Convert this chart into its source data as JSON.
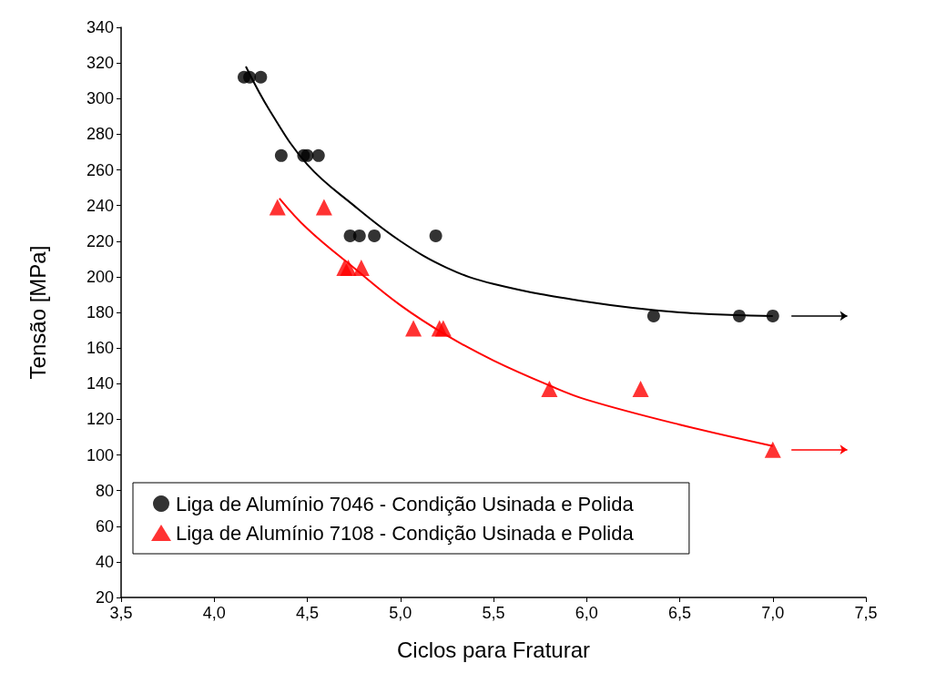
{
  "chart_data": {
    "type": "scatter",
    "xlabel": "Ciclos para Fraturar",
    "ylabel": "Tensão [MPa]",
    "xlim": [
      3.5,
      7.5
    ],
    "xticks": [
      {
        "value": 3.5,
        "label": "3,5"
      },
      {
        "value": 4,
        "label": "4,0"
      },
      {
        "value": 4.5,
        "label": "4,5"
      },
      {
        "value": 5,
        "label": "5,0"
      },
      {
        "value": 5.5,
        "label": "5,5"
      },
      {
        "value": 6,
        "label": "6,0"
      },
      {
        "value": 6.5,
        "label": "6,5"
      },
      {
        "value": 7,
        "label": "7,0"
      },
      {
        "value": 7.5,
        "label": "7,5"
      }
    ],
    "ylim": [
      20,
      340
    ],
    "yticks": [
      20,
      40,
      60,
      80,
      100,
      120,
      140,
      160,
      180,
      200,
      220,
      240,
      260,
      280,
      300,
      320,
      340
    ],
    "legend": "bottom left",
    "grid": false,
    "series": [
      {
        "name": "Liga de Alumínio 7046 - Condição Usinada e Polida",
        "color": "#000000",
        "marker": "circle",
        "x": [
          4.16,
          4.19,
          4.25,
          4.36,
          4.48,
          4.5,
          4.56,
          4.73,
          4.78,
          4.86,
          5.19,
          6.36,
          6.82,
          7.0
        ],
        "values": [
          312,
          312,
          312,
          268,
          268,
          268,
          268,
          223,
          223,
          223,
          223,
          178,
          178,
          178
        ]
      },
      {
        "name": "Liga de Alumínio 7108 - Condição Usinada e Polida",
        "color": "#ff0000",
        "marker": "triangle",
        "x": [
          4.34,
          4.59,
          4.7,
          4.72,
          4.79,
          5.07,
          5.21,
          5.23,
          5.8,
          6.29,
          7.0
        ],
        "values": [
          239,
          239,
          205,
          205,
          205,
          171,
          171,
          171,
          137,
          137,
          103
        ]
      },
      {
        "type": "line",
        "color": "#000000",
        "x": [
          4.17,
          4.3,
          4.5,
          4.75,
          5.0,
          5.25,
          5.5,
          6.0,
          6.5,
          7.0
        ],
        "values": [
          318,
          293,
          263,
          240,
          220,
          205,
          196,
          186,
          180,
          178
        ]
      },
      {
        "type": "line",
        "color": "#ff0000",
        "x": [
          4.35,
          4.5,
          4.75,
          5.0,
          5.25,
          5.5,
          5.8,
          6.0,
          6.5,
          7.0
        ],
        "values": [
          244,
          227,
          205,
          184,
          167,
          153,
          139,
          131,
          117,
          105
        ]
      }
    ]
  }
}
